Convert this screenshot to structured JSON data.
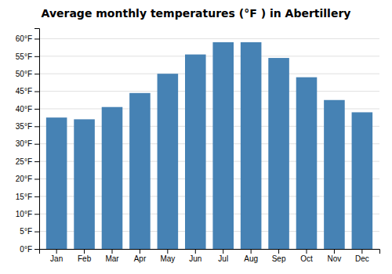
{
  "chart_data": {
    "type": "bar",
    "title": "Average monthly temperatures (°F ) in Abertillery",
    "categories": [
      "Jan",
      "Feb",
      "Mar",
      "Apr",
      "May",
      "Jun",
      "Jul",
      "Aug",
      "Sep",
      "Oct",
      "Nov",
      "Dec"
    ],
    "values": [
      37.5,
      37.0,
      40.5,
      44.5,
      50.0,
      55.5,
      59.0,
      59.0,
      54.5,
      49.0,
      42.5,
      39.0
    ],
    "ylim": [
      0,
      63
    ],
    "yticks": [
      {
        "value": 0,
        "label": "0°F"
      },
      {
        "value": 5,
        "label": "5°F"
      },
      {
        "value": 10,
        "label": "10°F"
      },
      {
        "value": 15,
        "label": "15°F"
      },
      {
        "value": 20,
        "label": "20°F"
      },
      {
        "value": 25,
        "label": "25°F"
      },
      {
        "value": 30,
        "label": "30°F"
      },
      {
        "value": 35,
        "label": "35°F"
      },
      {
        "value": 40,
        "label": "40°F"
      },
      {
        "value": 45,
        "label": "45°F"
      },
      {
        "value": 50,
        "label": "50°F"
      },
      {
        "value": 55,
        "label": "55°F"
      },
      {
        "value": 60,
        "label": "60°F"
      }
    ],
    "grid": true
  }
}
